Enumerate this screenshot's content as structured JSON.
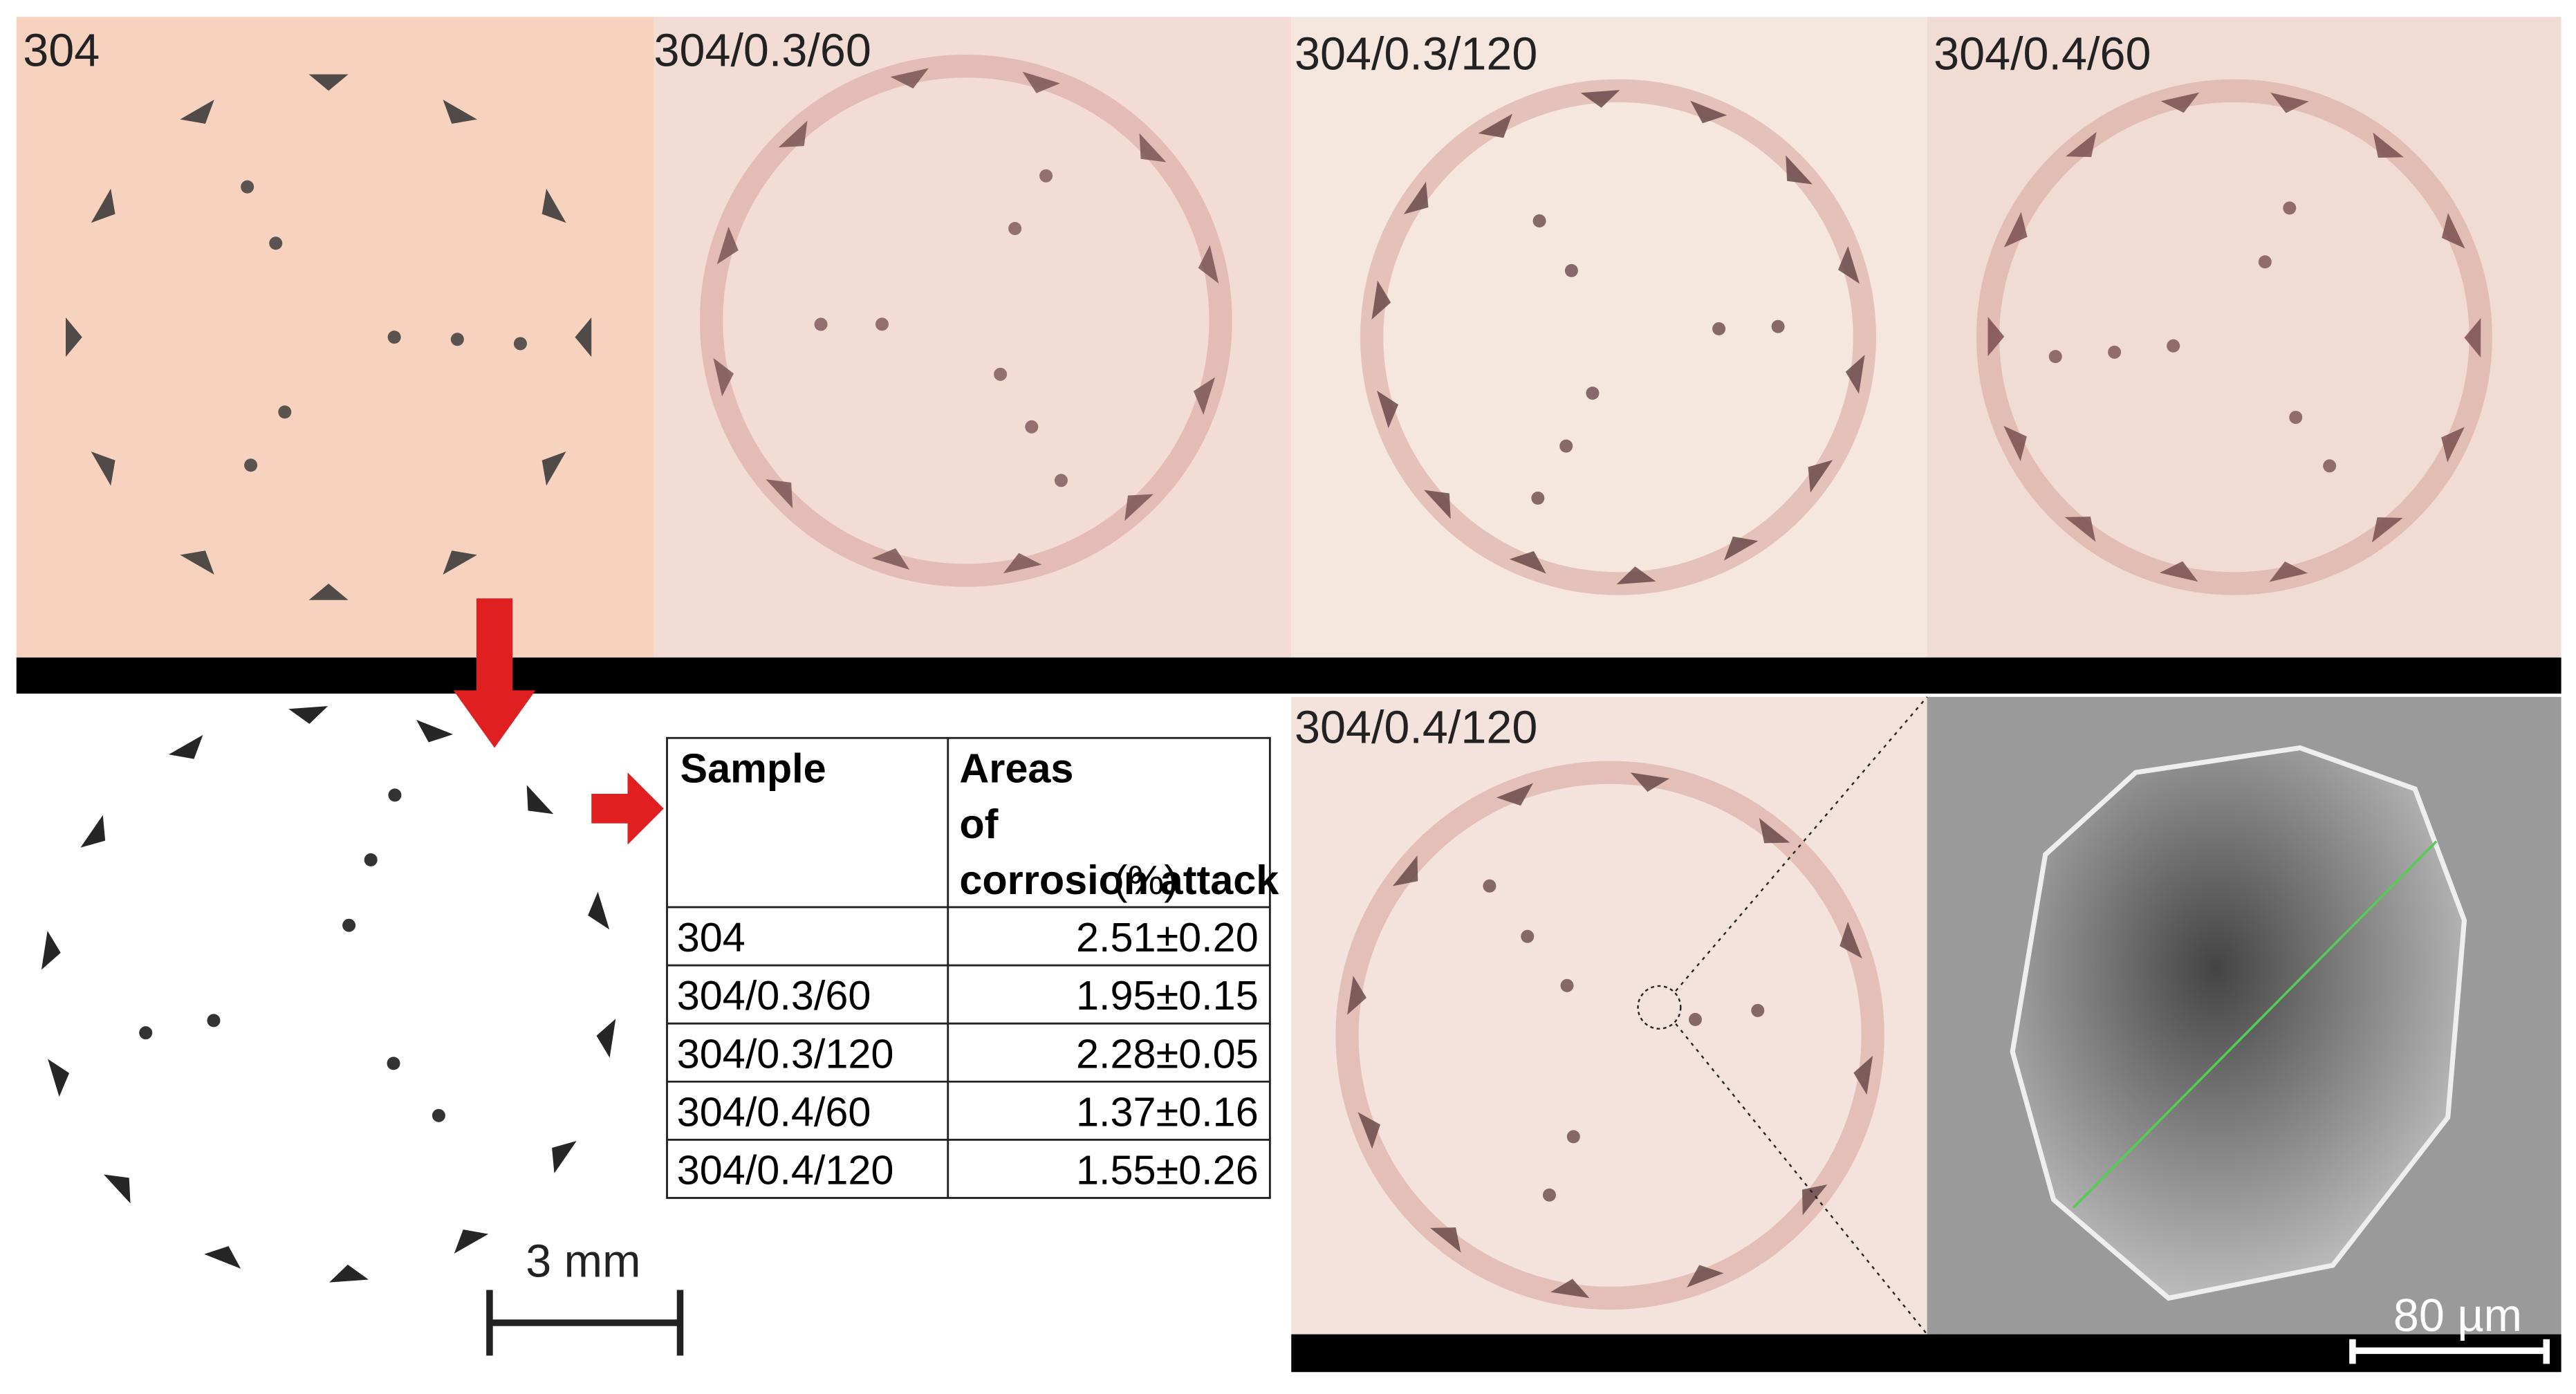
{
  "panels": [
    {
      "label": "304"
    },
    {
      "label": "304/0.3/60"
    },
    {
      "label": "304/0.3/120"
    },
    {
      "label": "304/0.4/60"
    },
    {
      "label": "304/0.4/120"
    }
  ],
  "scale_bars": {
    "macro": "3 mm",
    "sem": "80 µm"
  },
  "table": {
    "header": {
      "sample": "Sample",
      "areas": "Areas of corrosion attack",
      "unit": "(%)"
    },
    "rows": [
      [
        "304",
        "2.51±0.20"
      ],
      [
        "304/0.3/60",
        "1.95±0.15"
      ],
      [
        "304/0.3/120",
        "2.28±0.05"
      ],
      [
        "304/0.4/60",
        "1.37±0.16"
      ],
      [
        "304/0.4/120",
        "1.55±0.26"
      ]
    ]
  }
}
